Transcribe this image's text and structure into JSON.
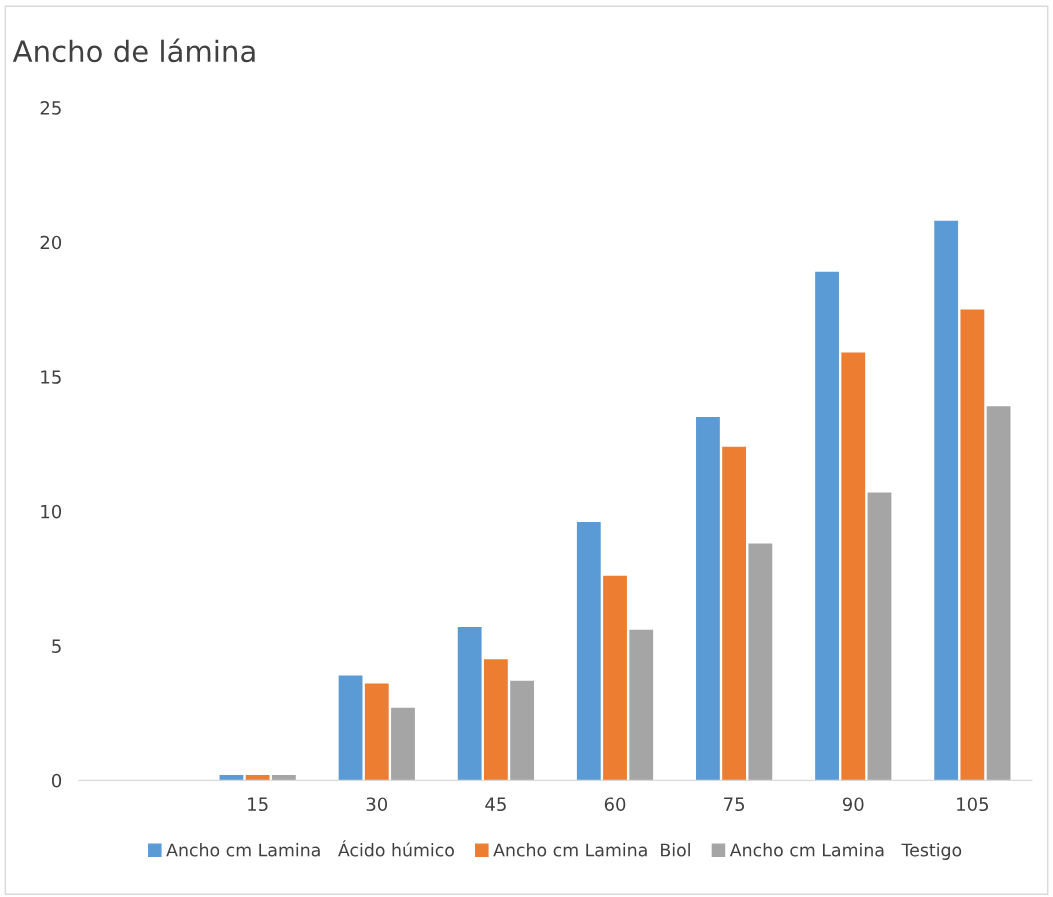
{
  "chart_data": {
    "type": "bar",
    "title": "Ancho de lámina",
    "categories": [
      null,
      "15",
      "30",
      "45",
      "60",
      "75",
      "90",
      "105"
    ],
    "series": [
      {
        "name": "Ancho cm Lamina   Ácido húmico",
        "color": "#5b9bd5",
        "values": [
          null,
          0.2,
          3.9,
          5.7,
          9.6,
          13.5,
          18.9,
          20.8
        ]
      },
      {
        "name": "Ancho cm Lamina  Biol",
        "color": "#ed7d31",
        "values": [
          null,
          0.2,
          3.6,
          4.5,
          7.6,
          12.4,
          15.9,
          17.5
        ]
      },
      {
        "name": "Ancho cm Lamina   Testigo",
        "color": "#a5a5a5",
        "values": [
          null,
          0.2,
          2.7,
          3.7,
          5.6,
          8.8,
          10.7,
          13.9
        ]
      }
    ],
    "ylim": [
      0,
      25
    ],
    "yticks": [
      0,
      5,
      10,
      15,
      20,
      25
    ],
    "grid": false,
    "legend": "bottom"
  }
}
